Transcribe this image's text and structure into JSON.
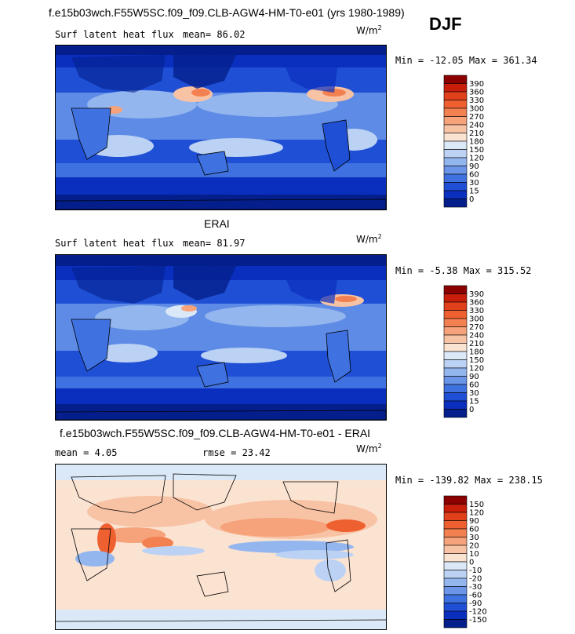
{
  "season": "DJF",
  "panels": [
    {
      "title": "f.e15b03wch.F55W5SC.f09_f09.CLB-AGW4-HM-T0-e01 (yrs 1980-1989)",
      "left_label": "Surf latent heat flux",
      "right_label": "mean=  86.02",
      "unit_base": "W/m",
      "unit_exp": "2",
      "minmax": "Min = -12.05 Max = 361.34",
      "levels": [
        "390",
        "360",
        "330",
        "300",
        "270",
        "240",
        "210",
        "180",
        "150",
        "120",
        "90",
        "60",
        "30",
        "15",
        "0"
      ],
      "colors": [
        "#8b0000",
        "#c81e0a",
        "#e0401a",
        "#ef6030",
        "#f38050",
        "#f6a27a",
        "#f8c3a5",
        "#fbe3d2",
        "#dbe8f8",
        "#bcd2f4",
        "#93b6ef",
        "#6a95e8",
        "#3f72e0",
        "#1f4fd4",
        "#0a2fbf",
        "#041f8c"
      ]
    },
    {
      "title": "ERAI",
      "left_label": "Surf latent heat flux",
      "right_label": "mean=  81.97",
      "unit_base": "W/m",
      "unit_exp": "2",
      "minmax": "Min =  -5.38 Max = 315.52",
      "levels": [
        "390",
        "360",
        "330",
        "300",
        "270",
        "240",
        "210",
        "180",
        "150",
        "120",
        "90",
        "60",
        "30",
        "15",
        "0"
      ],
      "colors": [
        "#8b0000",
        "#c81e0a",
        "#e0401a",
        "#ef6030",
        "#f38050",
        "#f6a27a",
        "#f8c3a5",
        "#fbe3d2",
        "#dbe8f8",
        "#bcd2f4",
        "#93b6ef",
        "#6a95e8",
        "#3f72e0",
        "#1f4fd4",
        "#0a2fbf",
        "#041f8c"
      ]
    },
    {
      "title": "f.e15b03wch.F55W5SC.f09_f09.CLB-AGW4-HM-T0-e01 - ERAI",
      "left_label": "mean =   4.05",
      "right_label": "rmse =  23.42",
      "unit_base": "W/m",
      "unit_exp": "2",
      "minmax": "Min = -139.82 Max = 238.15",
      "levels": [
        "150",
        "120",
        "90",
        "60",
        "30",
        "20",
        "10",
        "0",
        "-10",
        "-20",
        "-30",
        "-60",
        "-90",
        "-120",
        "-150"
      ],
      "colors": [
        "#8b0000",
        "#c81e0a",
        "#e0401a",
        "#ef6030",
        "#f38050",
        "#f6a27a",
        "#f8c3a5",
        "#fbe3d2",
        "#dbe8f8",
        "#bcd2f4",
        "#93b6ef",
        "#6a95e8",
        "#3f72e0",
        "#1f4fd4",
        "#0a2fbf",
        "#041f8c"
      ]
    }
  ],
  "chart_data": [
    {
      "type": "heatmap",
      "title": "f.e15b03wch.F55W5SC.f09_f09.CLB-AGW4-HM-T0-e01 (yrs 1980-1989)",
      "subtitle": "Surf latent heat flux",
      "mean": 86.02,
      "min": -12.05,
      "max": 361.34,
      "unit": "W/m2",
      "colorbar_levels": [
        0,
        15,
        30,
        60,
        90,
        120,
        150,
        180,
        210,
        240,
        270,
        300,
        330,
        360,
        390
      ]
    },
    {
      "type": "heatmap",
      "title": "ERAI",
      "subtitle": "Surf latent heat flux",
      "mean": 81.97,
      "min": -5.38,
      "max": 315.52,
      "unit": "W/m2",
      "colorbar_levels": [
        0,
        15,
        30,
        60,
        90,
        120,
        150,
        180,
        210,
        240,
        270,
        300,
        330,
        360,
        390
      ]
    },
    {
      "type": "heatmap",
      "title": "f.e15b03wch.F55W5SC.f09_f09.CLB-AGW4-HM-T0-e01 - ERAI",
      "mean": 4.05,
      "rmse": 23.42,
      "min": -139.82,
      "max": 238.15,
      "unit": "W/m2",
      "colorbar_levels": [
        -150,
        -120,
        -90,
        -60,
        -30,
        -20,
        -10,
        0,
        10,
        20,
        30,
        60,
        90,
        120,
        150
      ]
    }
  ]
}
